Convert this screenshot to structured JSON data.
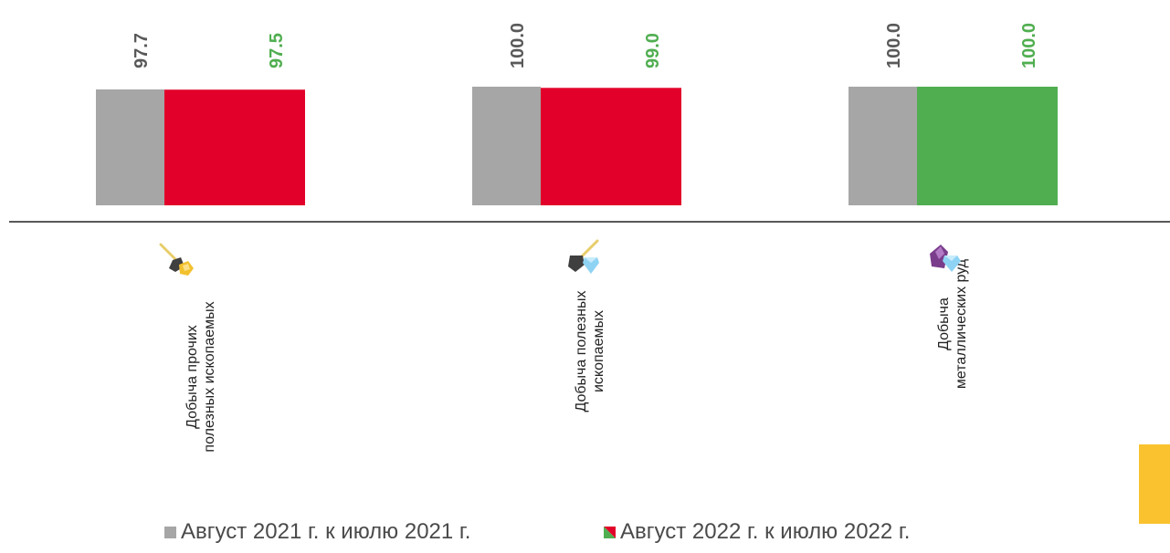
{
  "chart_data": {
    "type": "bar",
    "categories": [
      "Добыча прочих полезных ископаемых",
      "Добыча полезных ископаемых",
      "Добыча металлических руд"
    ],
    "series": [
      {
        "name": "Август 2021 г. к июлю 2021 г.",
        "values": [
          97.7,
          100.0,
          100.0
        ],
        "labels": [
          "97.7",
          "100.0",
          "100.0"
        ]
      },
      {
        "name": "Август 2022 г. к июлю 2022 г.",
        "values": [
          97.5,
          99.0,
          100.0
        ],
        "labels": [
          "97.5",
          "99.0",
          "100.0"
        ]
      }
    ],
    "colors": {
      "series_2021": "#a6a6a6",
      "decline": "#e2002a",
      "growth": "#50ae50",
      "label_2021": "#595959",
      "label_2022": "#50ae50",
      "axis": "#595959"
    },
    "legend_position": "bottom",
    "grid": false
  },
  "categories_text": [
    {
      "line1": "Добыча прочих",
      "line2": "полезных ископаемых",
      "icon": "shovel-gold-ore-icon"
    },
    {
      "line1": "Добыча полезных",
      "line2": "ископаемых",
      "icon": "shovel-diamond-icon"
    },
    {
      "line1": "Добыча",
      "line2": "металлических руд",
      "icon": "ore-diamond-icon"
    }
  ],
  "legend": {
    "item1": "Август 2021 г. к июлю 2021 г.",
    "item2": "Август 2022 г. к июлю 2022 г."
  }
}
